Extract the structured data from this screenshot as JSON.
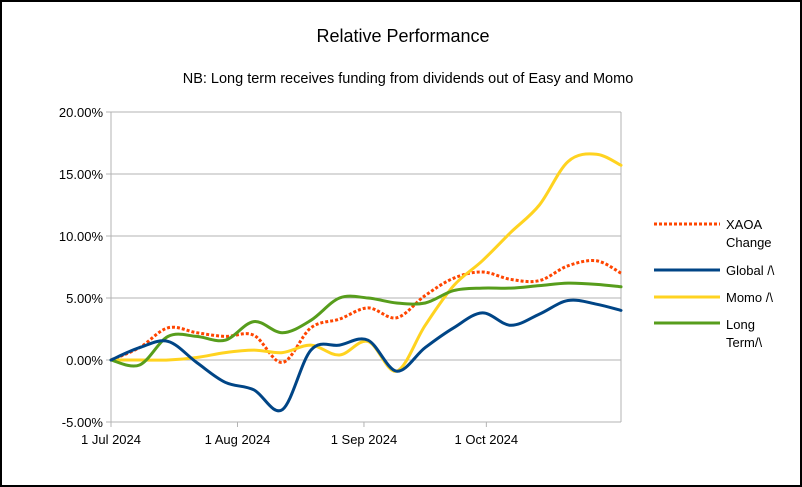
{
  "chart_data": {
    "type": "line",
    "title": "Relative Performance",
    "subtitle": "NB: Long term receives funding from dividends out of Easy and Momo",
    "xlabel": "",
    "ylabel": "",
    "x_tick_labels": [
      "1 Jul 2024",
      "1 Aug 2024",
      "1 Sep 2024",
      "1 Oct 2024"
    ],
    "x_tick_dates": [
      "2024-07-01",
      "2024-08-01",
      "2024-09-01",
      "2024-10-01"
    ],
    "y_tick_labels": [
      "20.00%",
      "15.00%",
      "10.00%",
      "5.00%",
      "0.00%",
      "-5.00%"
    ],
    "y_tick_values": [
      20,
      15,
      10,
      5,
      0,
      -5
    ],
    "xlim": [
      "2024-07-01",
      "2024-11-03"
    ],
    "ylim": [
      -5,
      20
    ],
    "grid": {
      "horizontal": true,
      "vertical": false,
      "color": "#b3b3b3"
    },
    "legend_position": "right",
    "x": [
      "2024-07-01",
      "2024-07-08",
      "2024-07-15",
      "2024-07-22",
      "2024-07-29",
      "2024-08-05",
      "2024-08-12",
      "2024-08-19",
      "2024-08-26",
      "2024-09-02",
      "2024-09-09",
      "2024-09-16",
      "2024-09-23",
      "2024-09-30",
      "2024-10-07",
      "2024-10-14",
      "2024-10-21",
      "2024-10-28",
      "2024-11-03"
    ],
    "series": [
      {
        "name": "XAOA Change",
        "color": "#ff4500",
        "dashed": true,
        "values": [
          0.0,
          1.0,
          2.6,
          2.2,
          1.9,
          2.0,
          -0.2,
          2.6,
          3.3,
          4.2,
          3.4,
          5.2,
          6.6,
          7.1,
          6.5,
          6.4,
          7.6,
          8.0,
          7.0
        ]
      },
      {
        "name": "Global /\\",
        "color": "#004586",
        "dashed": false,
        "values": [
          0.0,
          1.0,
          1.5,
          -0.2,
          -1.8,
          -2.4,
          -4.0,
          0.8,
          1.2,
          1.6,
          -0.9,
          1.0,
          2.6,
          3.8,
          2.8,
          3.7,
          4.8,
          4.5,
          4.0
        ]
      },
      {
        "name": "Momo /\\",
        "color": "#ffd320",
        "dashed": false,
        "values": [
          0.0,
          0.0,
          0.0,
          0.2,
          0.6,
          0.8,
          0.6,
          1.2,
          0.4,
          1.5,
          -0.9,
          2.8,
          6.0,
          8.0,
          10.3,
          12.5,
          16.0,
          16.6,
          15.7
        ]
      },
      {
        "name": "Long Term/\\",
        "color": "#579d1c",
        "dashed": false,
        "values": [
          0.0,
          -0.4,
          1.9,
          1.9,
          1.6,
          3.1,
          2.2,
          3.2,
          5.0,
          5.0,
          4.6,
          4.6,
          5.6,
          5.8,
          5.8,
          6.0,
          6.2,
          6.1,
          5.9
        ]
      }
    ],
    "legend_labels": [
      [
        "XAOA",
        "Change"
      ],
      [
        "Global /\\"
      ],
      [
        "Momo /\\"
      ],
      [
        "Long",
        "Term/\\"
      ]
    ]
  }
}
